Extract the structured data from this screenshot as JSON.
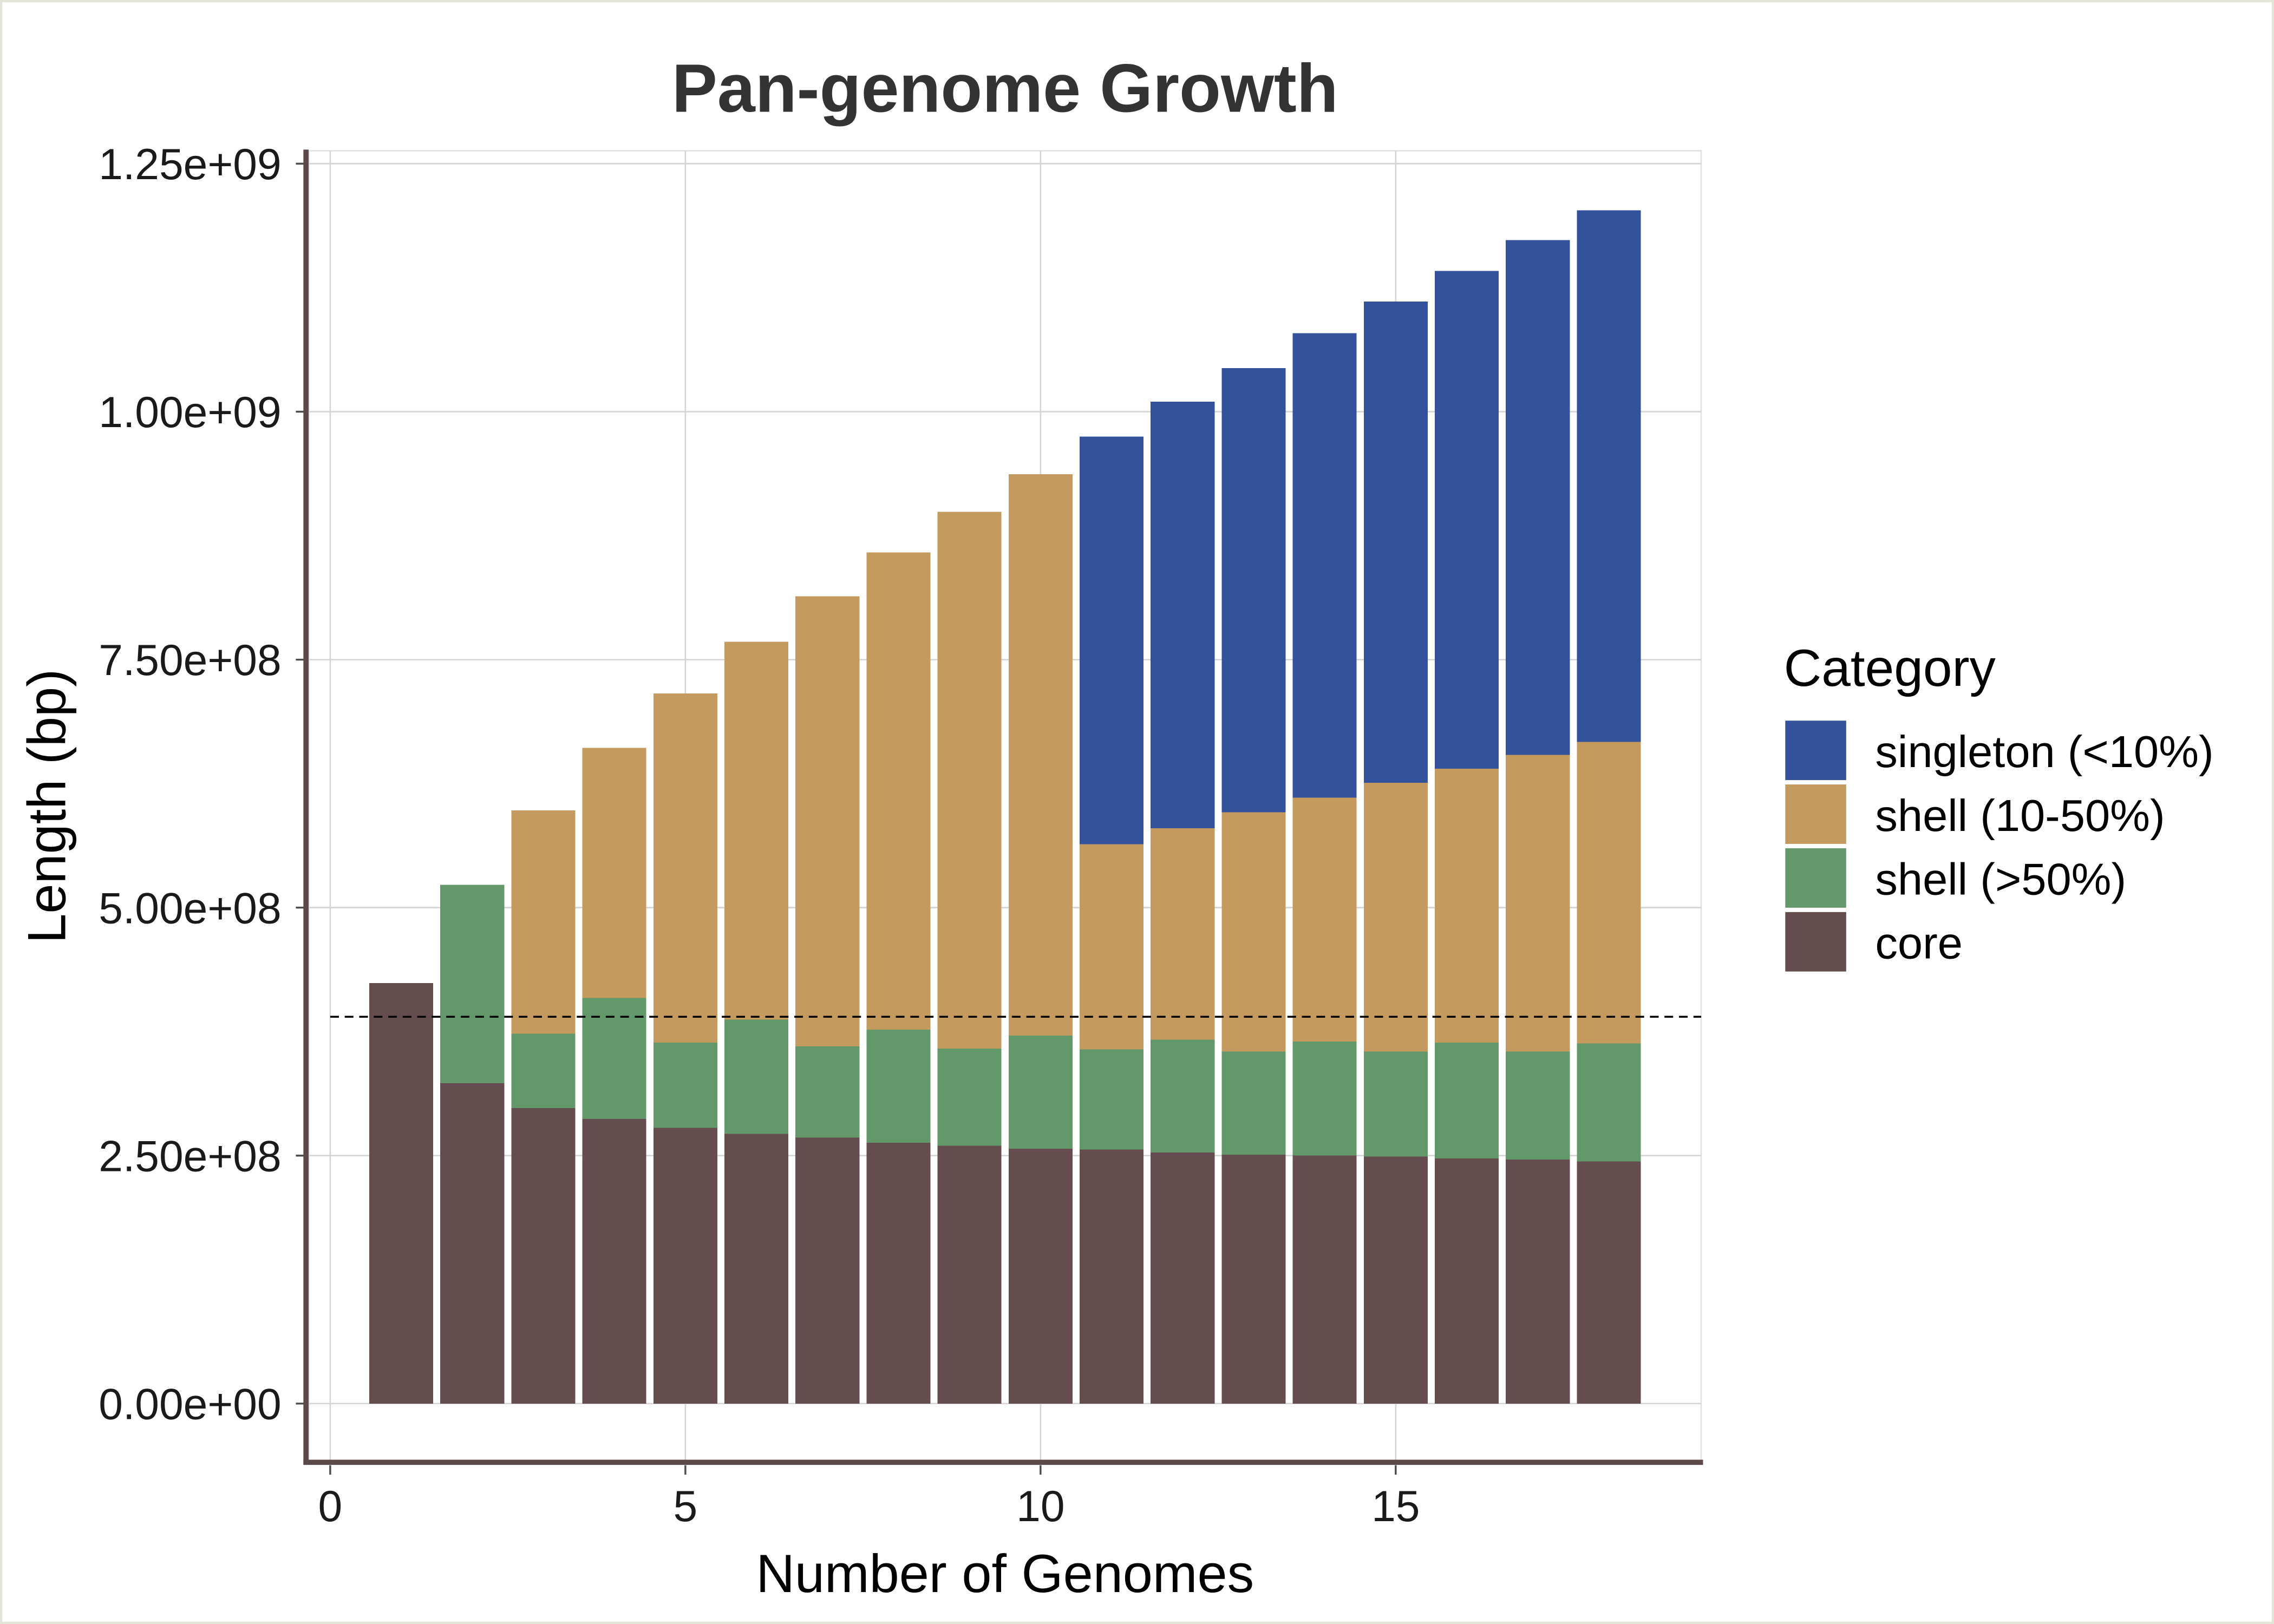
{
  "chart_data": {
    "type": "bar",
    "stacked": true,
    "title": "Pan-genome Growth",
    "xlabel": "Number of Genomes",
    "ylabel": "Length (bp)",
    "x": [
      1,
      2,
      3,
      4,
      5,
      6,
      7,
      8,
      9,
      10,
      11,
      12,
      13,
      14,
      15,
      16,
      17,
      18
    ],
    "xlim": [
      -0.3,
      19.3
    ],
    "ylim": [
      -58500000,
      1263000000
    ],
    "xticks": [
      0,
      5,
      10,
      15
    ],
    "xtick_labels": [
      "0",
      "5",
      "10",
      "15"
    ],
    "yticks": [
      0,
      250000000,
      500000000,
      750000000,
      1000000000,
      1250000000
    ],
    "ytick_labels": [
      "0.00e+00",
      "2.50e+08",
      "5.00e+08",
      "7.50e+08",
      "1.00e+09",
      "1.25e+09"
    ],
    "series": [
      {
        "name": "core",
        "color": "#654c4e",
        "values": [
          424000000,
          323000000,
          298000000,
          287000000,
          278000000,
          272000000,
          268000000,
          263000000,
          260000000,
          257000000,
          256000000,
          253000000,
          251000000,
          250000000,
          249000000,
          247000000,
          246000000,
          244000000
        ]
      },
      {
        "name": "shell (>50%)",
        "color": "#63986b",
        "values": [
          0,
          200000000,
          75000000,
          122000000,
          86000000,
          115000000,
          92000000,
          114000000,
          98000000,
          114000000,
          101000000,
          114000000,
          104000000,
          115000000,
          106000000,
          117000000,
          109000000,
          119000000
        ]
      },
      {
        "name": "shell (10-50%)",
        "color": "#c49a5e",
        "values": [
          0,
          0,
          225000000,
          252000000,
          352000000,
          381000000,
          454000000,
          481000000,
          541000000,
          566000000,
          207000000,
          213000000,
          241000000,
          246000000,
          271000000,
          276000000,
          299000000,
          304000000
        ]
      },
      {
        "name": "singleton (<10%)",
        "color": "#33529b",
        "values": [
          0,
          0,
          0,
          0,
          0,
          0,
          0,
          0,
          0,
          0,
          411000000,
          430000000,
          448000000,
          468000000,
          485000000,
          502000000,
          519000000,
          536000000
        ]
      }
    ],
    "reference_line": {
      "y": 390000000,
      "line_style": "dashed",
      "color": "#000000"
    },
    "legend": {
      "title": "Category",
      "position": "right"
    },
    "grid": true
  },
  "style": {
    "background": "#ffffff",
    "frame_color": "#e4e4d8",
    "title_color": "#333333",
    "axis_color": "#5c4a4a",
    "tick_color": "#4d4d4d",
    "grid_color": "#d5d5d5",
    "panel_border_color": "#e2e2e2"
  }
}
